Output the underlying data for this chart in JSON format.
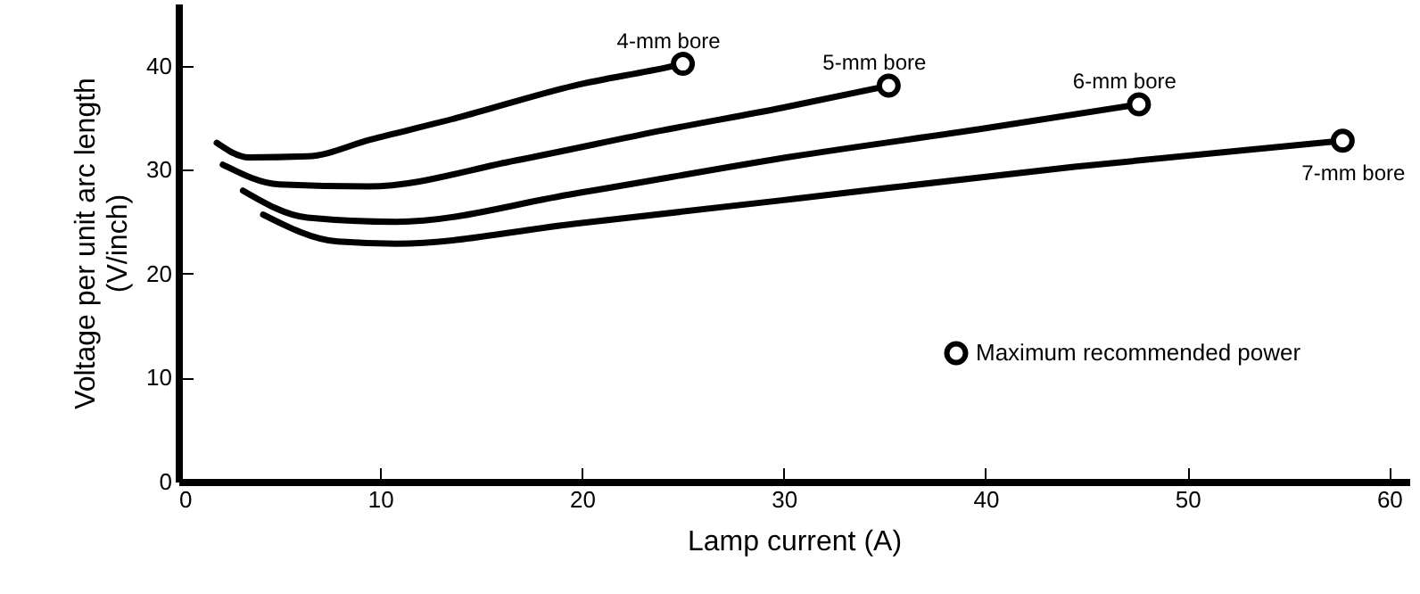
{
  "chart_data": {
    "type": "line",
    "xlabel": "Lamp current (A)",
    "ylabel": "Voltage per unit arc length\n(V/inch)",
    "xlim": [
      0,
      61
    ],
    "ylim": [
      0,
      46
    ],
    "xticks": [
      0,
      10,
      20,
      30,
      40,
      50,
      60
    ],
    "yticks": [
      0,
      10,
      20,
      30,
      40
    ],
    "grid": false,
    "legend": "bottom right",
    "series": [
      {
        "name": "4-mm bore",
        "color": "#000000",
        "x": [
          1.9,
          3.5,
          6.4,
          9.5,
          13.8,
          19.6,
          24.3,
          25
        ],
        "values": [
          32.6,
          31.2,
          31.3,
          32.9,
          35,
          38.1,
          39.9,
          40.2
        ]
      },
      {
        "name": "5-mm bore",
        "color": "#000000",
        "x": [
          2.2,
          5,
          9.4,
          16.7,
          24,
          30,
          35.2
        ],
        "values": [
          30.5,
          28.6,
          28.4,
          30.9,
          33.8,
          36,
          38.1
        ]
      },
      {
        "name": "6-mm bore",
        "color": "#000000",
        "x": [
          3.2,
          6.4,
          10.8,
          19.6,
          30.5,
          40,
          47.6
        ],
        "values": [
          28,
          25.4,
          25,
          27.7,
          31.3,
          34,
          36.3
        ]
      },
      {
        "name": "7-mm bore",
        "color": "#000000",
        "x": [
          4.2,
          7.9,
          10.8,
          19.6,
          30.5,
          44.4,
          57.7
        ],
        "values": [
          25.7,
          23.1,
          22.9,
          24.8,
          27.2,
          30.3,
          32.8
        ]
      },
      {
        "type": "scatter",
        "name": "Maximum recommended power",
        "color": "#000000",
        "marker": "circle",
        "x": [
          25,
          35.2,
          47.6,
          57.7
        ],
        "values": [
          40.2,
          38.1,
          36.3,
          32.8
        ]
      }
    ]
  }
}
